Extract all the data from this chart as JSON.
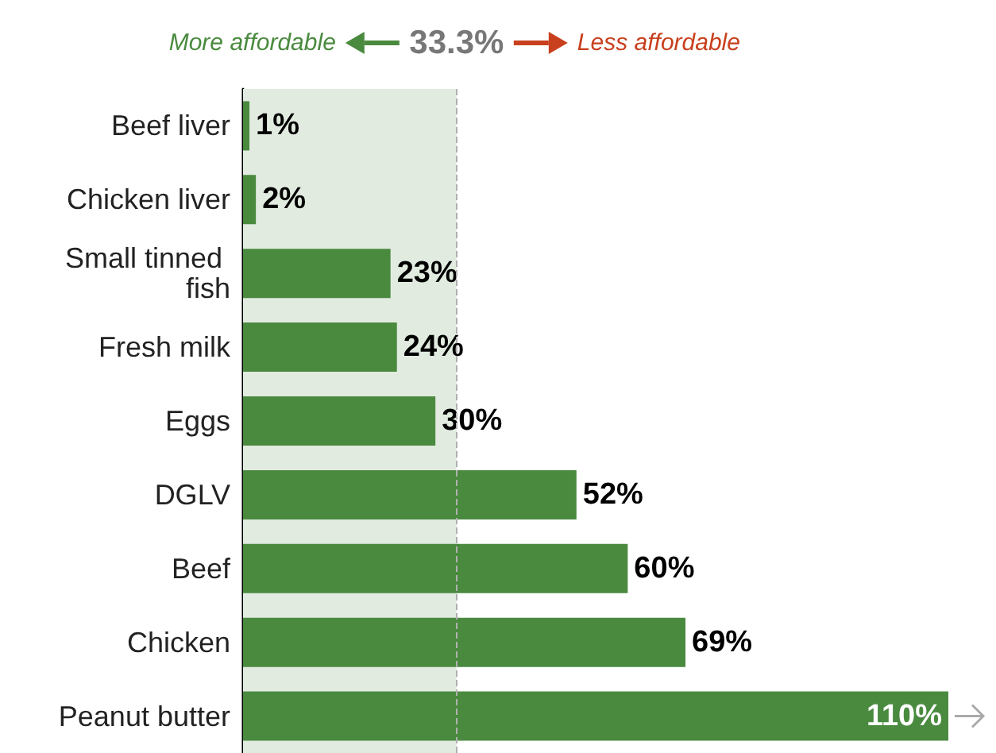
{
  "chart_data": {
    "type": "bar",
    "orientation": "horizontal",
    "categories": [
      "Beef liver",
      "Chicken liver",
      "Small tinned fish",
      "Fresh milk",
      "Eggs",
      "DGLV",
      "Beef",
      "Chicken",
      "Peanut butter"
    ],
    "values": [
      1,
      2,
      23,
      24,
      30,
      52,
      60,
      69,
      110
    ],
    "value_labels": [
      "1%",
      "2%",
      "23%",
      "24%",
      "30%",
      "52%",
      "60%",
      "69%",
      "110%"
    ],
    "color": "#4a8a3f",
    "xlim": [
      0,
      110
    ],
    "tick_labels": "y",
    "ref_lines": [
      {
        "axis": "x",
        "value": 33.3,
        "label": "33.3%",
        "color": "#b0b0b0",
        "line_style": "dashed"
      }
    ],
    "bands": [
      {
        "axis": "x",
        "from": 0,
        "to": 33.3,
        "color": "#e1ebe0"
      }
    ],
    "annotations": [
      "More affordable",
      "Less affordable"
    ]
  }
}
